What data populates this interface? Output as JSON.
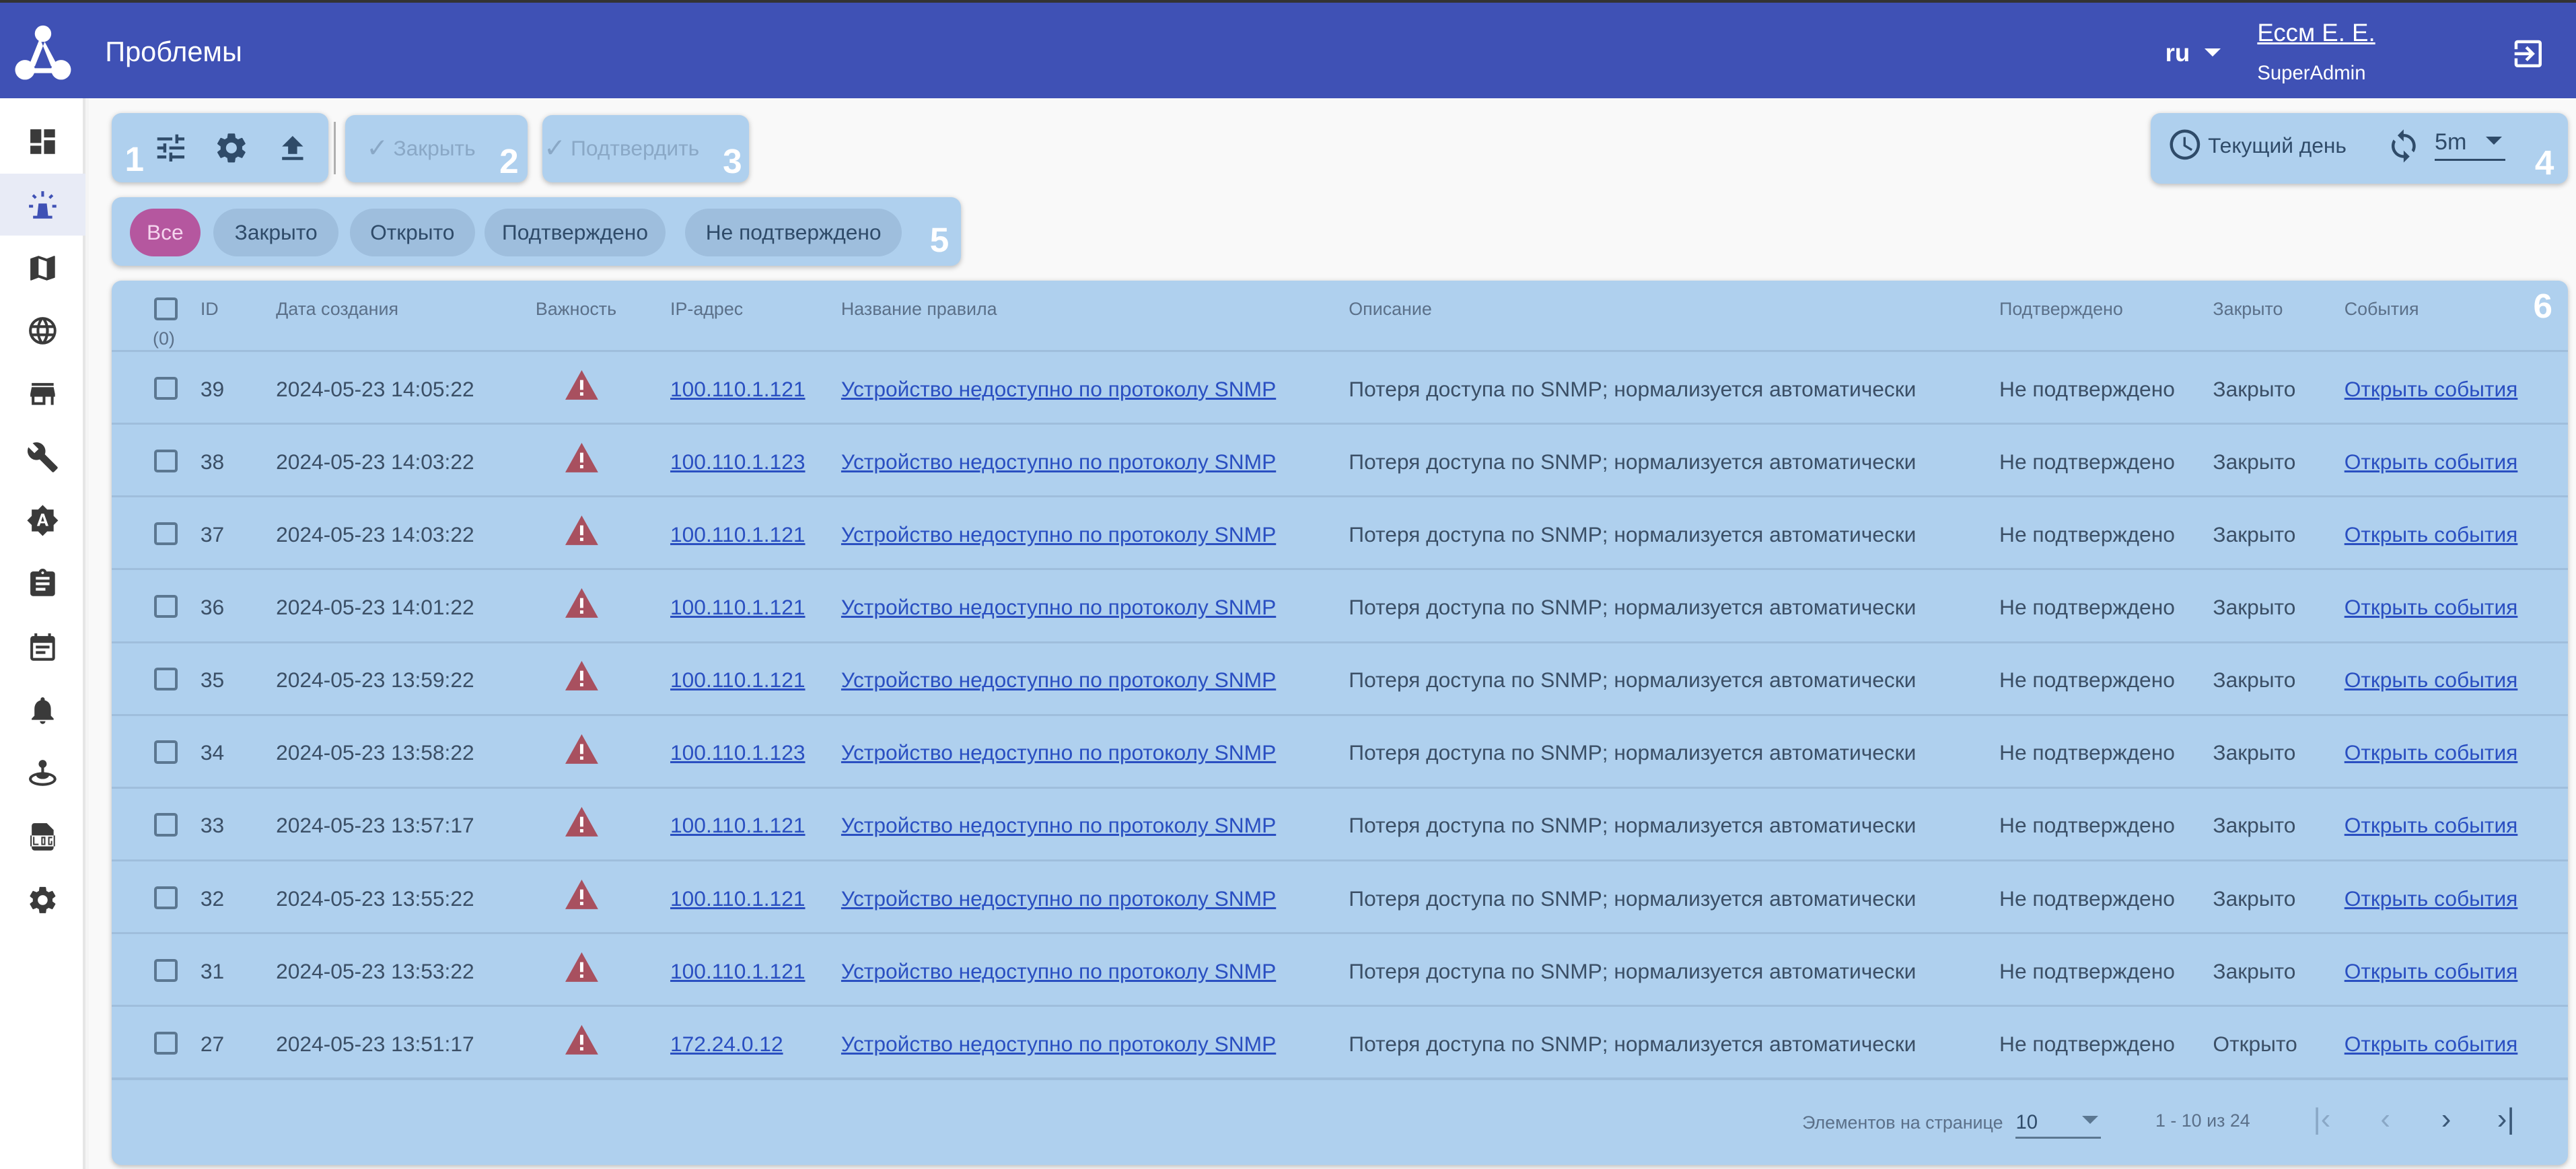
{
  "header": {
    "title": "Проблемы",
    "language": "ru",
    "user_name": "Ессм Е. Е.",
    "user_role": "SuperAdmin"
  },
  "sidebar": {
    "items": [
      {
        "icon": "dashboard-icon",
        "active": false
      },
      {
        "icon": "siren-alarm-icon",
        "active": true
      },
      {
        "icon": "map-icon",
        "active": false
      },
      {
        "icon": "globe-icon",
        "active": false
      },
      {
        "icon": "store-icon",
        "active": false
      },
      {
        "icon": "wrench-icon",
        "active": false
      },
      {
        "icon": "brightness-auto-icon",
        "active": false
      },
      {
        "icon": "clipboard-icon",
        "active": false
      },
      {
        "icon": "calendar-icon",
        "active": false
      },
      {
        "icon": "bell-icon",
        "active": false
      },
      {
        "icon": "joystick-icon",
        "active": false
      },
      {
        "icon": "log-file-icon",
        "active": false
      },
      {
        "icon": "settings-icon",
        "active": false
      }
    ]
  },
  "toolbar": {
    "close_label": "Закрыть",
    "confirm_label": "Подтвердить",
    "period_label": "Текущий день",
    "refresh_interval": "5m"
  },
  "annotations": [
    "1",
    "2",
    "3",
    "4",
    "5",
    "6"
  ],
  "filters": [
    {
      "label": "Все",
      "selected": true
    },
    {
      "label": "Закрыто",
      "selected": false
    },
    {
      "label": "Открыто",
      "selected": false
    },
    {
      "label": "Подтверждено",
      "selected": false
    },
    {
      "label": "Не подтверждено",
      "selected": false
    }
  ],
  "table": {
    "selected_count": "(0)",
    "columns": {
      "id": "ID",
      "created": "Дата создания",
      "severity": "Важность",
      "ip": "IP-адрес",
      "rule": "Название правила",
      "description": "Описание",
      "confirmed": "Подтверждено",
      "closed": "Закрыто",
      "events": "События"
    },
    "rows": [
      {
        "id": "39",
        "created": "2024-05-23 14:05:22",
        "ip": "100.110.1.121",
        "rule": "Устройство недоступно по протоколу SNMP",
        "description": "Потеря доступа по SNMP; нормализуется автоматически",
        "confirmed": "Не подтверждено",
        "closed": "Закрыто",
        "events": "Открыть события"
      },
      {
        "id": "38",
        "created": "2024-05-23 14:03:22",
        "ip": "100.110.1.123",
        "rule": "Устройство недоступно по протоколу SNMP",
        "description": "Потеря доступа по SNMP; нормализуется автоматически",
        "confirmed": "Не подтверждено",
        "closed": "Закрыто",
        "events": "Открыть события"
      },
      {
        "id": "37",
        "created": "2024-05-23 14:03:22",
        "ip": "100.110.1.121",
        "rule": "Устройство недоступно по протоколу SNMP",
        "description": "Потеря доступа по SNMP; нормализуется автоматически",
        "confirmed": "Не подтверждено",
        "closed": "Закрыто",
        "events": "Открыть события"
      },
      {
        "id": "36",
        "created": "2024-05-23 14:01:22",
        "ip": "100.110.1.121",
        "rule": "Устройство недоступно по протоколу SNMP",
        "description": "Потеря доступа по SNMP; нормализуется автоматически",
        "confirmed": "Не подтверждено",
        "closed": "Закрыто",
        "events": "Открыть события"
      },
      {
        "id": "35",
        "created": "2024-05-23 13:59:22",
        "ip": "100.110.1.121",
        "rule": "Устройство недоступно по протоколу SNMP",
        "description": "Потеря доступа по SNMP; нормализуется автоматически",
        "confirmed": "Не подтверждено",
        "closed": "Закрыто",
        "events": "Открыть события"
      },
      {
        "id": "34",
        "created": "2024-05-23 13:58:22",
        "ip": "100.110.1.123",
        "rule": "Устройство недоступно по протоколу SNMP",
        "description": "Потеря доступа по SNMP; нормализуется автоматически",
        "confirmed": "Не подтверждено",
        "closed": "Закрыто",
        "events": "Открыть события"
      },
      {
        "id": "33",
        "created": "2024-05-23 13:57:17",
        "ip": "100.110.1.121",
        "rule": "Устройство недоступно по протоколу SNMP",
        "description": "Потеря доступа по SNMP; нормализуется автоматически",
        "confirmed": "Не подтверждено",
        "closed": "Закрыто",
        "events": "Открыть события"
      },
      {
        "id": "32",
        "created": "2024-05-23 13:55:22",
        "ip": "100.110.1.121",
        "rule": "Устройство недоступно по протоколу SNMP",
        "description": "Потеря доступа по SNMP; нормализуется автоматически",
        "confirmed": "Не подтверждено",
        "closed": "Закрыто",
        "events": "Открыть события"
      },
      {
        "id": "31",
        "created": "2024-05-23 13:53:22",
        "ip": "100.110.1.121",
        "rule": "Устройство недоступно по протоколу SNMP",
        "description": "Потеря доступа по SNMP; нормализуется автоматически",
        "confirmed": "Не подтверждено",
        "closed": "Закрыто",
        "events": "Открыть события"
      },
      {
        "id": "27",
        "created": "2024-05-23 13:51:17",
        "ip": "172.24.0.12",
        "rule": "Устройство недоступно по протоколу SNMP",
        "description": "Потеря доступа по SNMP; нормализуется автоматически",
        "confirmed": "Не подтверждено",
        "closed": "Открыто",
        "events": "Открыть события"
      }
    ]
  },
  "pagination": {
    "per_page_label": "Элементов на странице",
    "per_page": "10",
    "range": "1 - 10 из 24"
  },
  "colors": {
    "header": "#3f51b5",
    "panel": "#afd0ee",
    "selected_chip": "#b5579f",
    "link": "#2a4fc1",
    "severity_warning": "#a8505f"
  }
}
